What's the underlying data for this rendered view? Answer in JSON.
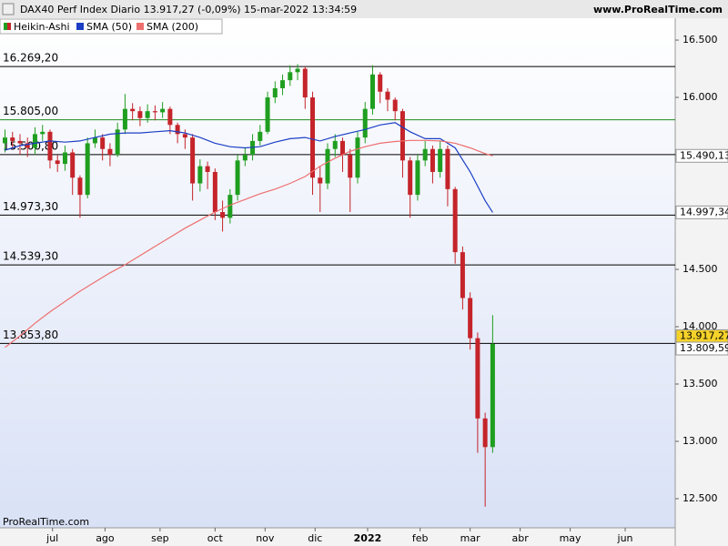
{
  "chart_data": {
    "type": "candlestick",
    "title": "DAX40 Perf Index Diario 13.917,27 (-0,09%) 15-mar-2022 13:34:59",
    "source": "www.ProRealTime.com",
    "watermark": "ProRealTime.com",
    "candle_name": "Heikin-Ashi",
    "up_color": "#1f9e1f",
    "down_color": "#c4242a",
    "x": [
      0,
      3,
      6,
      9,
      12,
      15,
      18,
      21,
      24,
      27,
      30,
      33,
      36,
      39,
      42,
      45,
      48,
      51,
      54,
      57,
      60,
      63,
      66,
      69,
      72,
      75,
      78,
      81,
      84,
      87,
      90,
      93,
      96,
      99,
      102,
      105,
      108,
      111,
      114,
      117,
      120,
      123,
      126,
      129,
      132,
      135,
      138,
      141,
      144,
      147,
      150,
      153,
      156,
      159,
      162,
      165,
      168,
      171,
      174,
      177,
      180,
      183,
      186,
      189,
      192,
      195
    ],
    "open": [
      15600,
      15650,
      15620,
      15600,
      15560,
      15680,
      15700,
      15450,
      15420,
      15520,
      15300,
      15150,
      15600,
      15650,
      15550,
      15500,
      15720,
      15900,
      15880,
      15820,
      15880,
      15870,
      15900,
      15760,
      15680,
      15650,
      15250,
      15400,
      15350,
      15000,
      14950,
      15150,
      15450,
      15500,
      15620,
      15700,
      16000,
      16080,
      16150,
      16220,
      16250,
      16000,
      15300,
      15250,
      15550,
      15620,
      15500,
      15300,
      15650,
      15900,
      16200,
      16050,
      15980,
      15880,
      15450,
      15150,
      15450,
      15550,
      15350,
      15550,
      15200,
      14650,
      14250,
      13900,
      13200,
      12950
    ],
    "high": [
      15720,
      15700,
      15680,
      15650,
      15740,
      15760,
      15720,
      15500,
      15580,
      15550,
      15320,
      15650,
      15720,
      15680,
      15600,
      15780,
      16030,
      15950,
      15920,
      15940,
      15930,
      15960,
      15920,
      15780,
      15720,
      15680,
      15460,
      15440,
      15380,
      15100,
      15200,
      15500,
      15560,
      15680,
      15760,
      16050,
      16140,
      16200,
      16280,
      16290,
      16270,
      16050,
      15400,
      15600,
      15680,
      15650,
      15550,
      15700,
      15960,
      16280,
      16220,
      16080,
      16000,
      15900,
      15480,
      15500,
      15620,
      15580,
      15620,
      15580,
      15220,
      14700,
      14300,
      13950,
      13250,
      14100
    ],
    "low": [
      15520,
      15560,
      15500,
      15480,
      15500,
      15620,
      15380,
      15350,
      15360,
      15150,
      14950,
      15120,
      15560,
      15450,
      15400,
      15480,
      15680,
      15800,
      15750,
      15780,
      15800,
      15820,
      15680,
      15600,
      15550,
      15100,
      15180,
      15200,
      14930,
      14830,
      14900,
      15100,
      15400,
      15450,
      15580,
      15680,
      15950,
      16020,
      16100,
      16150,
      15900,
      15150,
      15000,
      15200,
      15480,
      15350,
      15000,
      15250,
      15600,
      15850,
      15950,
      15880,
      15800,
      15300,
      14950,
      15100,
      15400,
      15250,
      15300,
      15050,
      14550,
      14150,
      13800,
      12900,
      12430,
      12900
    ],
    "close": [
      15650,
      15620,
      15600,
      15560,
      15680,
      15700,
      15450,
      15420,
      15520,
      15300,
      15150,
      15600,
      15650,
      15550,
      15500,
      15720,
      15900,
      15880,
      15820,
      15880,
      15870,
      15900,
      15760,
      15680,
      15650,
      15250,
      15400,
      15350,
      15000,
      14950,
      15150,
      15450,
      15500,
      15620,
      15700,
      16000,
      16080,
      16150,
      16220,
      16250,
      16000,
      15300,
      15250,
      15550,
      15620,
      15500,
      15300,
      15650,
      15900,
      16200,
      16050,
      15980,
      15880,
      15450,
      15150,
      15450,
      15550,
      15350,
      15550,
      15200,
      14650,
      14250,
      13900,
      13200,
      12950,
      13850
    ],
    "series": [
      {
        "name": "SMA (50)",
        "color": "#1c3fc4",
        "x": [
          0,
          6,
          12,
          18,
          24,
          30,
          36,
          42,
          48,
          54,
          60,
          66,
          72,
          78,
          84,
          90,
          96,
          102,
          108,
          114,
          120,
          126,
          132,
          138,
          144,
          150,
          156,
          162,
          168,
          174,
          180,
          186,
          192,
          195
        ],
        "values": [
          15540,
          15580,
          15600,
          15620,
          15610,
          15620,
          15650,
          15680,
          15690,
          15690,
          15700,
          15710,
          15690,
          15650,
          15600,
          15570,
          15560,
          15570,
          15610,
          15640,
          15650,
          15620,
          15660,
          15690,
          15720,
          15760,
          15780,
          15700,
          15640,
          15640,
          15560,
          15350,
          15100,
          14997.34
        ]
      },
      {
        "name": "SMA (200)",
        "color": "#ee6f6f",
        "x": [
          0,
          6,
          12,
          18,
          24,
          30,
          36,
          42,
          48,
          54,
          60,
          66,
          72,
          78,
          84,
          90,
          96,
          102,
          108,
          114,
          120,
          126,
          132,
          138,
          144,
          150,
          156,
          162,
          168,
          174,
          180,
          186,
          192,
          195
        ],
        "values": [
          13820,
          13920,
          14030,
          14130,
          14220,
          14310,
          14390,
          14470,
          14540,
          14620,
          14700,
          14780,
          14860,
          14930,
          15000,
          15060,
          15110,
          15160,
          15200,
          15250,
          15310,
          15400,
          15470,
          15530,
          15570,
          15600,
          15615,
          15625,
          15625,
          15620,
          15600,
          15560,
          15510,
          15490.13
        ]
      }
    ],
    "levels": [
      {
        "value": 16269.2,
        "label": "16.269,20",
        "color": "#000000"
      },
      {
        "value": 15805,
        "label": "15.805,00",
        "color": "#1f8a1f"
      },
      {
        "value": 15500.8,
        "label": "15.500,80",
        "color": "#000000"
      },
      {
        "value": 14973.3,
        "label": "14.973,30",
        "color": "#000000"
      },
      {
        "value": 14539.3,
        "label": "14.539,30",
        "color": "#000000"
      },
      {
        "value": 13853.8,
        "label": "13.853,80",
        "color": "#000000"
      }
    ],
    "price_tags": [
      {
        "value": 15490.13,
        "label": "15.490,13",
        "color": "#e04040",
        "background": "#ffffff"
      },
      {
        "value": 14997.34,
        "label": "14.997,34",
        "color": "#1c3fc4",
        "background": "#ffffff"
      },
      {
        "value": 13917.27,
        "label": "13.917,27",
        "color": "#000000",
        "background": "#f5d22a"
      },
      {
        "value": 13809.59,
        "label": "13.809,59",
        "color": "#000000",
        "background": "#ffffff"
      }
    ],
    "xlim": [
      -2,
      268
    ],
    "xticks": [
      {
        "value": 19,
        "label": "jul"
      },
      {
        "value": 40,
        "label": "ago"
      },
      {
        "value": 62,
        "label": "sep"
      },
      {
        "value": 84,
        "label": "oct"
      },
      {
        "value": 104,
        "label": "nov"
      },
      {
        "value": 124,
        "label": "dic"
      },
      {
        "value": 145,
        "label": "2022"
      },
      {
        "value": 166,
        "label": "feb"
      },
      {
        "value": 186,
        "label": "mar"
      },
      {
        "value": 206,
        "label": "abr"
      },
      {
        "value": 226,
        "label": "may"
      },
      {
        "value": 248,
        "label": "jun"
      }
    ],
    "ylim": [
      12246,
      16675
    ],
    "yticks": [
      {
        "value": 12500,
        "label": "12.500"
      },
      {
        "value": 13000,
        "label": "13.000"
      },
      {
        "value": 13500,
        "label": "13.500"
      },
      {
        "value": 14000,
        "label": "14.000"
      },
      {
        "value": 14500,
        "label": "14.500"
      },
      {
        "value": 15000,
        "label": "15.000"
      },
      {
        "value": 15500,
        "label": "15.500"
      },
      {
        "value": 16000,
        "label": "16.000"
      },
      {
        "value": 16500,
        "label": "16.500"
      }
    ]
  }
}
